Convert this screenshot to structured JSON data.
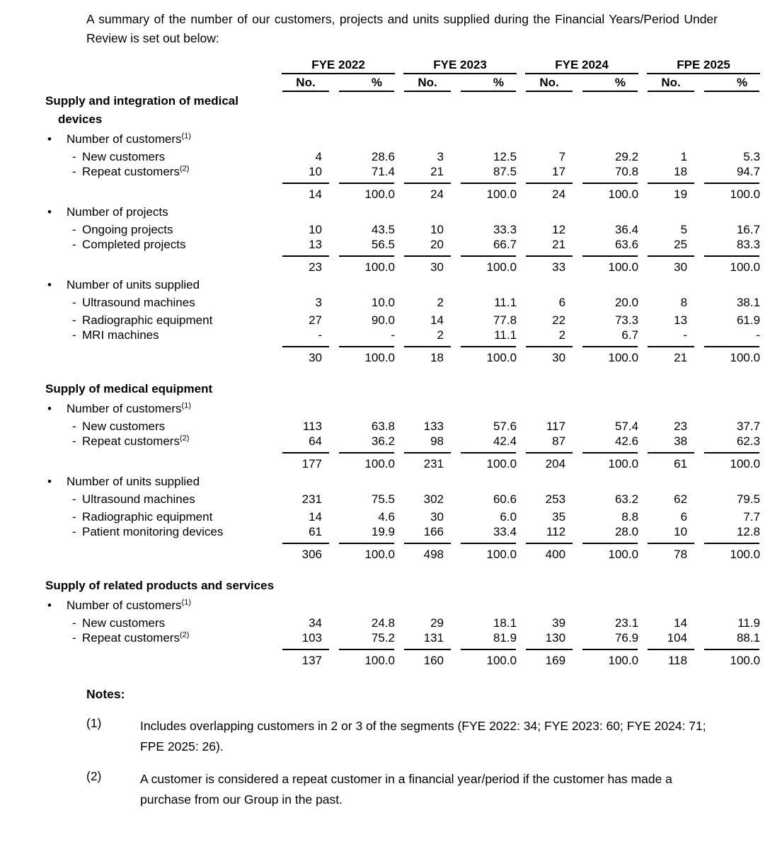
{
  "intro": "A summary of the number of our customers, projects and units supplied during the Financial Years/Period Under Review is set out below:",
  "table": {
    "year_headers": [
      "FYE 2022",
      "FYE 2023",
      "FYE 2024",
      "FPE 2025"
    ],
    "col_headers": {
      "no": "No.",
      "pct": "%"
    },
    "rows": [
      {
        "type": "section",
        "label": "Supply and integration of medical devices"
      },
      {
        "type": "bullet",
        "label": "Number of customers",
        "sup": "(1)"
      },
      {
        "type": "item",
        "label": "New customers",
        "values": [
          "4",
          "28.6",
          "3",
          "12.5",
          "7",
          "29.2",
          "1",
          "5.3"
        ]
      },
      {
        "type": "item",
        "label": "Repeat customers",
        "sup": "(2)",
        "rule": true,
        "values": [
          "10",
          "71.4",
          "21",
          "87.5",
          "17",
          "70.8",
          "18",
          "94.7"
        ]
      },
      {
        "type": "total",
        "values": [
          "14",
          "100.0",
          "24",
          "100.0",
          "24",
          "100.0",
          "19",
          "100.0"
        ]
      },
      {
        "type": "bullet",
        "label": "Number of projects"
      },
      {
        "type": "item",
        "label": "Ongoing projects",
        "values": [
          "10",
          "43.5",
          "10",
          "33.3",
          "12",
          "36.4",
          "5",
          "16.7"
        ]
      },
      {
        "type": "item",
        "label": "Completed projects",
        "rule": true,
        "values": [
          "13",
          "56.5",
          "20",
          "66.7",
          "21",
          "63.6",
          "25",
          "83.3"
        ]
      },
      {
        "type": "total",
        "values": [
          "23",
          "100.0",
          "30",
          "100.0",
          "33",
          "100.0",
          "30",
          "100.0"
        ]
      },
      {
        "type": "bullet",
        "label": "Number of units supplied"
      },
      {
        "type": "item",
        "label": "Ultrasound machines",
        "values": [
          "3",
          "10.0",
          "2",
          "11.1",
          "6",
          "20.0",
          "8",
          "38.1"
        ]
      },
      {
        "type": "item",
        "label": "Radiographic equipment",
        "values": [
          "27",
          "90.0",
          "14",
          "77.8",
          "22",
          "73.3",
          "13",
          "61.9"
        ]
      },
      {
        "type": "item",
        "label": "MRI machines",
        "rule": true,
        "values": [
          "-",
          "-",
          "2",
          "11.1",
          "2",
          "6.7",
          "-",
          "-"
        ]
      },
      {
        "type": "total",
        "values": [
          "30",
          "100.0",
          "18",
          "100.0",
          "30",
          "100.0",
          "21",
          "100.0"
        ]
      },
      {
        "type": "gap"
      },
      {
        "type": "section",
        "label": "Supply of medical equipment"
      },
      {
        "type": "bullet",
        "label": "Number of customers",
        "sup": "(1)"
      },
      {
        "type": "item",
        "label": "New customers",
        "values": [
          "113",
          "63.8",
          "133",
          "57.6",
          "117",
          "57.4",
          "23",
          "37.7"
        ]
      },
      {
        "type": "item",
        "label": "Repeat customers",
        "sup": "(2)",
        "rule": true,
        "values": [
          "64",
          "36.2",
          "98",
          "42.4",
          "87",
          "42.6",
          "38",
          "62.3"
        ]
      },
      {
        "type": "total",
        "values": [
          "177",
          "100.0",
          "231",
          "100.0",
          "204",
          "100.0",
          "61",
          "100.0"
        ]
      },
      {
        "type": "bullet",
        "label": "Number of units supplied"
      },
      {
        "type": "item",
        "label": "Ultrasound machines",
        "values": [
          "231",
          "75.5",
          "302",
          "60.6",
          "253",
          "63.2",
          "62",
          "79.5"
        ]
      },
      {
        "type": "item",
        "label": "Radiographic equipment",
        "values": [
          "14",
          "4.6",
          "30",
          "6.0",
          "35",
          "8.8",
          "6",
          "7.7"
        ]
      },
      {
        "type": "item",
        "label": "Patient monitoring devices",
        "rule": true,
        "values": [
          "61",
          "19.9",
          "166",
          "33.4",
          "112",
          "28.0",
          "10",
          "12.8"
        ]
      },
      {
        "type": "total",
        "values": [
          "306",
          "100.0",
          "498",
          "100.0",
          "400",
          "100.0",
          "78",
          "100.0"
        ]
      },
      {
        "type": "gap"
      },
      {
        "type": "section",
        "label": "Supply of related products and services"
      },
      {
        "type": "bullet",
        "label": "Number of customers",
        "sup": "(1)"
      },
      {
        "type": "item",
        "label": "New customers",
        "values": [
          "34",
          "24.8",
          "29",
          "18.1",
          "39",
          "23.1",
          "14",
          "11.9"
        ]
      },
      {
        "type": "item",
        "label": "Repeat customers",
        "sup": "(2)",
        "rule": true,
        "values": [
          "103",
          "75.2",
          "131",
          "81.9",
          "130",
          "76.9",
          "104",
          "88.1"
        ]
      },
      {
        "type": "total",
        "values": [
          "137",
          "100.0",
          "160",
          "100.0",
          "169",
          "100.0",
          "118",
          "100.0"
        ]
      }
    ]
  },
  "notes": {
    "title": "Notes:",
    "items": [
      {
        "marker": "(1)",
        "text": "Includes overlapping customers in 2 or 3 of the segments (FYE 2022: 34; FYE 2023: 60; FYE 2024: 71; FPE 2025: 26)."
      },
      {
        "marker": "(2)",
        "text": "A customer is considered a repeat customer in a financial year/period if the customer has made a purchase from our Group in the past."
      }
    ]
  }
}
